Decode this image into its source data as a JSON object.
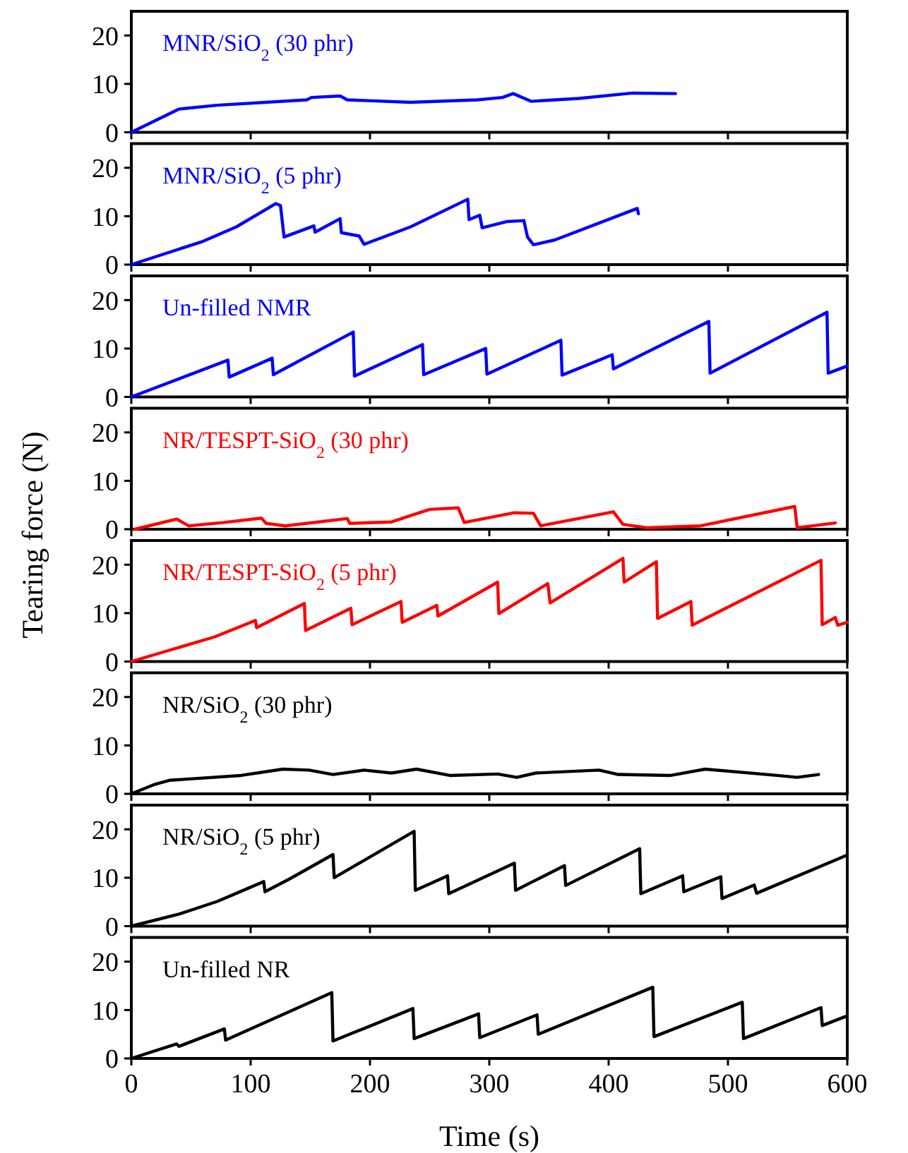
{
  "chart_data": [
    {
      "type": "line",
      "annotations": [
        "MNR/SiO$_{2}$ (30 phr)"
      ],
      "xlim": [
        0,
        600
      ],
      "xticks": [
        0,
        100,
        200,
        300,
        400,
        500,
        600
      ],
      "ylim": [
        0,
        25
      ],
      "yticks": [
        0,
        10,
        20
      ],
      "tick_labels": "y",
      "series": [
        {
          "color": "#0000ff",
          "x": [
            0,
            40,
            72,
            147,
            151,
            175,
            181,
            234,
            290,
            311,
            320,
            335,
            375,
            420,
            456
          ],
          "values": [
            0,
            4.8,
            5.6,
            6.7,
            7.2,
            7.5,
            6.7,
            6.2,
            6.7,
            7.2,
            8.0,
            6.4,
            7.0,
            8.1,
            8.0
          ]
        }
      ]
    },
    {
      "type": "line",
      "annotations": [
        "MNR/SiO$_{2}$ (5 phr)"
      ],
      "xlim": [
        0,
        600
      ],
      "xticks": [
        0,
        100,
        200,
        300,
        400,
        500,
        600
      ],
      "ylim": [
        0,
        25
      ],
      "yticks": [
        0,
        10,
        20
      ],
      "tick_labels": "y",
      "series": [
        {
          "color": "#0000ff",
          "x": [
            0,
            60,
            88,
            121,
            125,
            128,
            153,
            154,
            175,
            176,
            191,
            195,
            234,
            282,
            283,
            292,
            294,
            315,
            329,
            332,
            337,
            355,
            424,
            425
          ],
          "values": [
            0,
            4.8,
            7.8,
            12.6,
            12.2,
            5.7,
            8.0,
            6.7,
            9.5,
            6.6,
            5.9,
            4.2,
            7.8,
            13.5,
            9.3,
            10.2,
            7.6,
            8.9,
            9.1,
            5.7,
            4.1,
            5.1,
            11.6,
            10.5
          ]
        }
      ]
    },
    {
      "type": "line",
      "annotations": [
        "Un-filled NMR"
      ],
      "xlim": [
        0,
        600
      ],
      "xticks": [
        0,
        100,
        200,
        300,
        400,
        500,
        600
      ],
      "ylim": [
        0,
        25
      ],
      "yticks": [
        0,
        10,
        20
      ],
      "tick_labels": "y",
      "series": [
        {
          "color": "#0000ff",
          "x": [
            0,
            81,
            82,
            118,
            119,
            186,
            187,
            244,
            245,
            297,
            298,
            360,
            361,
            403,
            404,
            484,
            485,
            583,
            584,
            600
          ],
          "values": [
            0,
            7.6,
            4.1,
            8.0,
            4.6,
            13.4,
            4.3,
            10.8,
            4.6,
            10.0,
            4.7,
            11.7,
            4.5,
            8.7,
            5.8,
            15.6,
            4.9,
            17.5,
            4.9,
            6.4
          ]
        }
      ]
    },
    {
      "type": "line",
      "annotations": [
        "NR/TESPT-SiO$_{2}$ (30 phr)"
      ],
      "xlim": [
        0,
        600
      ],
      "xticks": [
        0,
        100,
        200,
        300,
        400,
        500,
        600
      ],
      "ylim": [
        0,
        25
      ],
      "yticks": [
        0,
        10,
        20
      ],
      "tick_labels": "y",
      "series": [
        {
          "color": "#ff0000",
          "x": [
            3,
            38,
            48,
            78,
            109,
            113,
            129,
            181,
            183,
            218,
            250,
            274,
            279,
            321,
            337,
            343,
            404,
            412,
            432,
            477,
            556,
            558,
            590
          ],
          "values": [
            0,
            2.1,
            0.7,
            1.4,
            2.3,
            1.2,
            0.7,
            2.2,
            1.2,
            1.5,
            4.1,
            4.4,
            1.4,
            3.4,
            3.3,
            0.7,
            3.6,
            1.0,
            0.3,
            0.7,
            4.7,
            0.3,
            1.3
          ]
        }
      ]
    },
    {
      "type": "line",
      "annotations": [
        "NR/TESPT-SiO$_{2}$ (5 phr)"
      ],
      "ylabel": "Tearing force (N)",
      "xlim": [
        0,
        600
      ],
      "xticks": [
        0,
        100,
        200,
        300,
        400,
        500,
        600
      ],
      "ylim": [
        0,
        25
      ],
      "yticks": [
        0,
        10,
        20
      ],
      "tick_labels": "y",
      "series": [
        {
          "color": "#ff0000",
          "x": [
            0,
            70,
            104,
            105,
            145,
            146,
            184,
            185,
            226,
            227,
            256,
            257,
            307,
            308,
            349,
            351,
            412,
            413,
            440,
            441,
            469,
            470,
            578,
            579,
            590,
            592,
            600
          ],
          "values": [
            0,
            5.1,
            8.5,
            7.0,
            12.0,
            6.4,
            11.0,
            7.6,
            12.4,
            8.1,
            11.6,
            9.4,
            16.4,
            9.9,
            16.1,
            12.1,
            21.3,
            16.4,
            20.6,
            8.9,
            12.4,
            7.5,
            20.9,
            7.6,
            9.1,
            7.5,
            8.1
          ]
        }
      ]
    },
    {
      "type": "line",
      "annotations": [
        "NR/SiO$_{2}$ (30 phr)"
      ],
      "xlim": [
        0,
        600
      ],
      "xticks": [
        0,
        100,
        200,
        300,
        400,
        500,
        600
      ],
      "ylim": [
        0,
        25
      ],
      "yticks": [
        0,
        10,
        20
      ],
      "tick_labels": "y",
      "series": [
        {
          "color": "#000000",
          "x": [
            0,
            19,
            32,
            92,
            127,
            149,
            169,
            195,
            218,
            239,
            267,
            307,
            323,
            339,
            392,
            408,
            452,
            481,
            541,
            558,
            576
          ],
          "values": [
            0,
            1.9,
            2.8,
            3.8,
            5.1,
            4.9,
            4.0,
            4.9,
            4.3,
            5.1,
            3.8,
            4.1,
            3.4,
            4.3,
            4.9,
            4.0,
            3.8,
            5.1,
            3.8,
            3.4,
            4.0
          ]
        }
      ]
    },
    {
      "type": "line",
      "annotations": [
        "NR/SiO$_{2}$ (5 phr)"
      ],
      "xlim": [
        0,
        600
      ],
      "xticks": [
        0,
        100,
        200,
        300,
        400,
        500,
        600
      ],
      "ylim": [
        0,
        25
      ],
      "yticks": [
        0,
        10,
        20
      ],
      "tick_labels": "y",
      "series": [
        {
          "color": "#000000",
          "x": [
            0,
            40,
            72,
            111,
            112,
            133,
            169,
            170,
            237,
            238,
            265,
            266,
            321,
            322,
            363,
            364,
            426,
            427,
            462,
            463,
            494,
            495,
            522,
            524,
            600
          ],
          "values": [
            0,
            2.5,
            5.1,
            9.2,
            7.1,
            9.8,
            14.8,
            10.0,
            19.6,
            7.4,
            10.4,
            6.7,
            13.0,
            7.4,
            12.5,
            8.4,
            16.0,
            6.7,
            10.4,
            7.1,
            10.2,
            5.7,
            8.5,
            6.8,
            14.7
          ]
        }
      ]
    },
    {
      "type": "line",
      "annotations": [
        "Un-filled NR"
      ],
      "xlabel": "Time (s)",
      "xlim": [
        0,
        600
      ],
      "xticks": [
        0,
        100,
        200,
        300,
        400,
        500,
        600
      ],
      "ylim": [
        0,
        25
      ],
      "yticks": [
        0,
        10,
        20
      ],
      "series": [
        {
          "color": "#000000",
          "x": [
            0,
            38,
            40,
            78,
            79,
            168,
            169,
            236,
            237,
            291,
            292,
            340,
            341,
            437,
            438,
            512,
            513,
            578,
            579,
            600
          ],
          "values": [
            0,
            3.0,
            2.5,
            6.1,
            3.8,
            13.6,
            3.6,
            10.3,
            4.1,
            9.2,
            4.3,
            9.0,
            5.0,
            14.7,
            4.5,
            11.6,
            4.1,
            10.5,
            6.8,
            8.8
          ]
        }
      ]
    }
  ]
}
